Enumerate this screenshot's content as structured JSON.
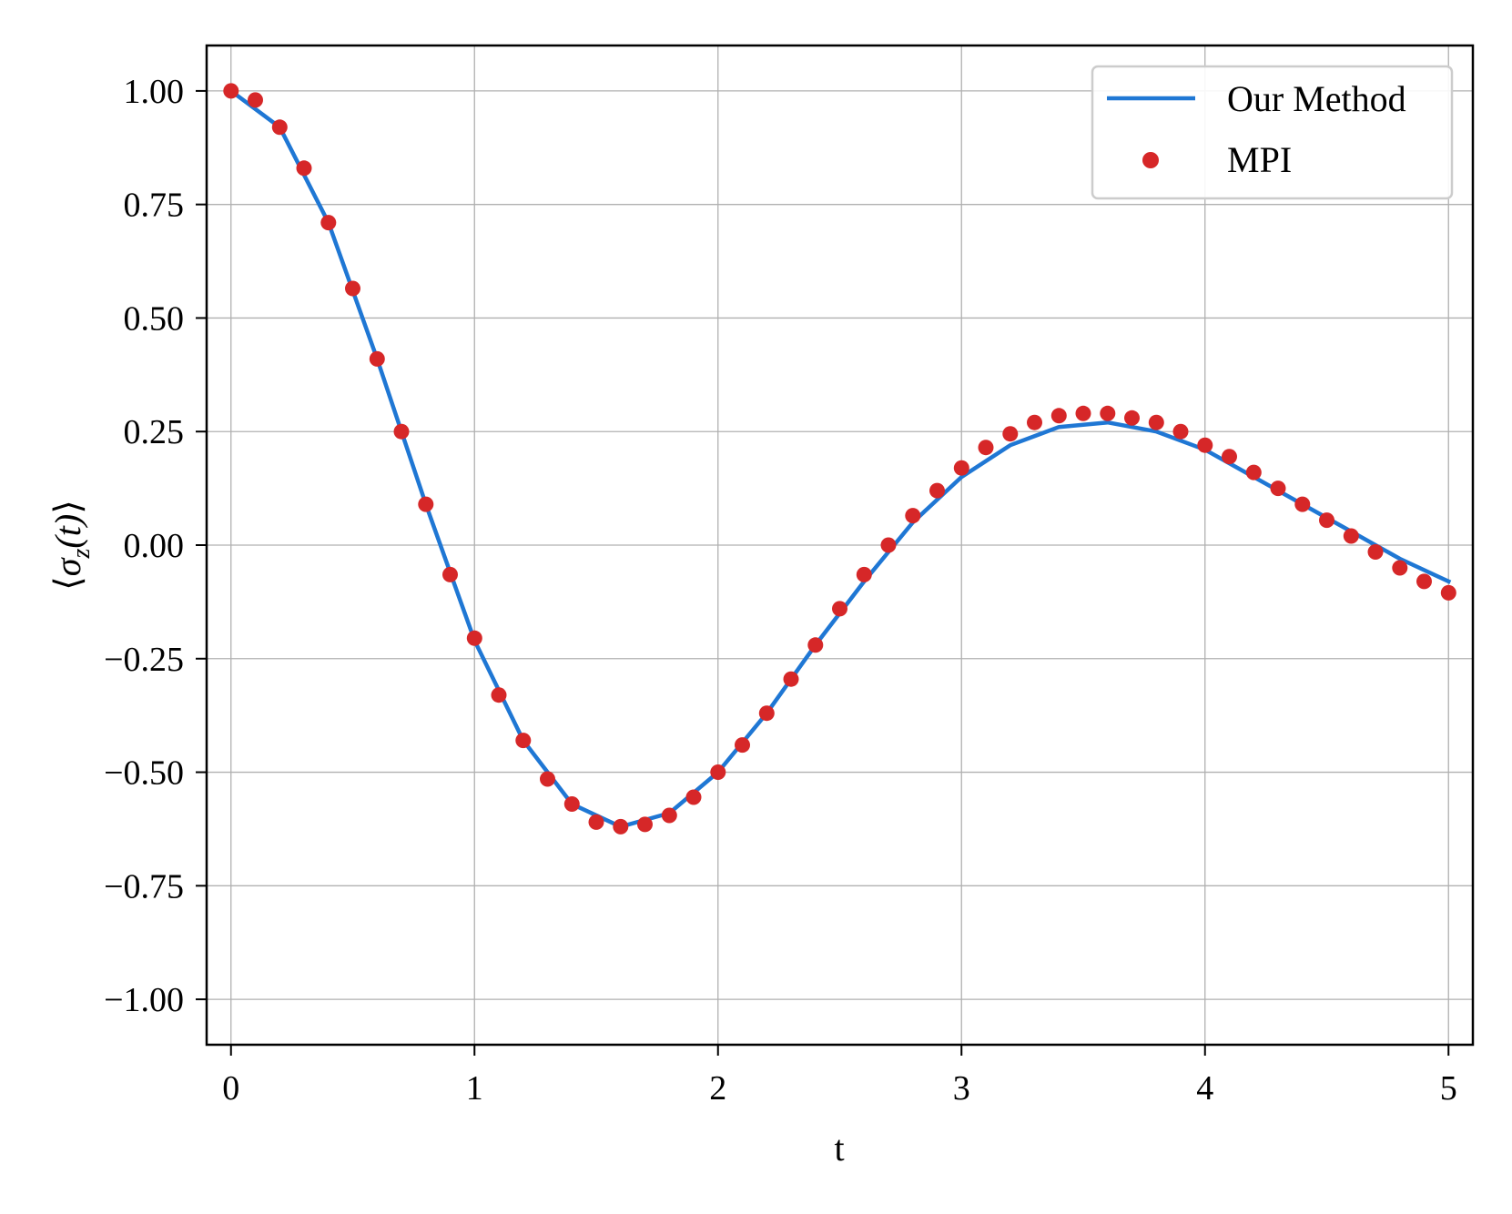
{
  "chart_data": {
    "type": "line",
    "xlabel": "t",
    "ylabel": "⟨σz(t)⟩",
    "ylabel_parts": {
      "open": "⟨",
      "symbol": "σ",
      "sub": "z",
      "arg": "(t)",
      "close": "⟩"
    },
    "xlim": [
      -0.1,
      5.1
    ],
    "ylim": [
      -1.1,
      1.1
    ],
    "xticks": [
      0,
      1,
      2,
      3,
      4,
      5
    ],
    "xtick_labels": [
      "0",
      "1",
      "2",
      "3",
      "4",
      "5"
    ],
    "yticks": [
      1.0,
      0.75,
      0.5,
      0.25,
      0.0,
      -0.25,
      -0.5,
      -0.75,
      -1.0
    ],
    "ytick_labels": [
      "1.00",
      "0.75",
      "0.50",
      "0.25",
      "0.00",
      "−0.25",
      "−0.50",
      "−0.75",
      "−1.00"
    ],
    "grid": true,
    "legend_position": "top-right",
    "series": [
      {
        "name": "Our Method",
        "style": "line",
        "color": "#1f77d4",
        "x": [
          0.0,
          0.2,
          0.4,
          0.6,
          0.8,
          1.0,
          1.2,
          1.4,
          1.6,
          1.8,
          2.0,
          2.2,
          2.4,
          2.6,
          2.8,
          3.0,
          3.2,
          3.4,
          3.6,
          3.8,
          4.0,
          4.2,
          4.4,
          4.6,
          4.8,
          5.0
        ],
        "y": [
          1.0,
          0.92,
          0.71,
          0.41,
          0.09,
          -0.21,
          -0.43,
          -0.57,
          -0.62,
          -0.59,
          -0.5,
          -0.37,
          -0.22,
          -0.08,
          0.05,
          0.15,
          0.22,
          0.26,
          0.27,
          0.25,
          0.21,
          0.15,
          0.09,
          0.03,
          -0.03,
          -0.08
        ]
      },
      {
        "name": "MPI",
        "style": "scatter",
        "color": "#d62728",
        "x": [
          0.0,
          0.1,
          0.2,
          0.3,
          0.4,
          0.5,
          0.6,
          0.7,
          0.8,
          0.9,
          1.0,
          1.1,
          1.2,
          1.3,
          1.4,
          1.5,
          1.6,
          1.7,
          1.8,
          1.9,
          2.0,
          2.1,
          2.2,
          2.3,
          2.4,
          2.5,
          2.6,
          2.7,
          2.8,
          2.9,
          3.0,
          3.1,
          3.2,
          3.3,
          3.4,
          3.5,
          3.6,
          3.7,
          3.8,
          3.9,
          4.0,
          4.1,
          4.2,
          4.3,
          4.4,
          4.5,
          4.6,
          4.7,
          4.8,
          4.9,
          5.0
        ],
        "y": [
          1.0,
          0.98,
          0.92,
          0.83,
          0.71,
          0.565,
          0.41,
          0.25,
          0.09,
          -0.065,
          -0.205,
          -0.33,
          -0.43,
          -0.515,
          -0.57,
          -0.61,
          -0.62,
          -0.615,
          -0.595,
          -0.555,
          -0.5,
          -0.44,
          -0.37,
          -0.295,
          -0.22,
          -0.14,
          -0.065,
          0.0,
          0.065,
          0.12,
          0.17,
          0.215,
          0.245,
          0.27,
          0.285,
          0.29,
          0.29,
          0.28,
          0.27,
          0.25,
          0.22,
          0.195,
          0.16,
          0.125,
          0.09,
          0.055,
          0.02,
          -0.015,
          -0.05,
          -0.08,
          -0.105
        ]
      }
    ]
  }
}
